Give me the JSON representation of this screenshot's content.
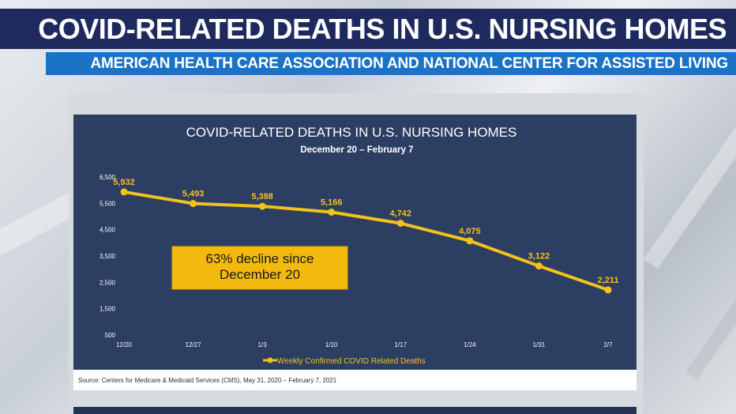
{
  "headline": "COVID-RELATED DEATHS IN U.S. NURSING HOMES",
  "subheadline": "AMERICAN HEALTH CARE ASSOCIATION AND NATIONAL CENTER FOR ASSISTED LIVING",
  "source": "Source: Centers for Medicare & Medicaid Services (CMS), May 31, 2020 – February 7, 2021",
  "colors": {
    "headline_bg": "#1e2a5e",
    "subheadline_bg": "#1b73c6",
    "slide_bg": "#2d3e63",
    "series": "#f3c21b"
  },
  "chart_data": {
    "type": "line",
    "title": "COVID-RELATED DEATHS IN U.S. NURSING HOMES",
    "subtitle": "December 20 – February 7",
    "categories": [
      "12/20",
      "12/27",
      "1/3",
      "1/10",
      "1/17",
      "1/24",
      "1/31",
      "2/7"
    ],
    "series": [
      {
        "name": "Weekly Confirmed COVID Related Deaths",
        "values": [
          5932,
          5493,
          5388,
          5166,
          4742,
          4075,
          3122,
          2211
        ],
        "labels": [
          "5,932",
          "5,493",
          "5,388",
          "5,166",
          "4,742",
          "4,075",
          "3,122",
          "2,211"
        ]
      }
    ],
    "yticks": [
      "6,500",
      "5,500",
      "4,500",
      "3,500",
      "2,500",
      "1,500",
      "500"
    ],
    "ylim": [
      500,
      6500
    ],
    "annotation": [
      "63% decline since",
      "December 20"
    ],
    "legend_position": "bottom",
    "grid": false
  }
}
